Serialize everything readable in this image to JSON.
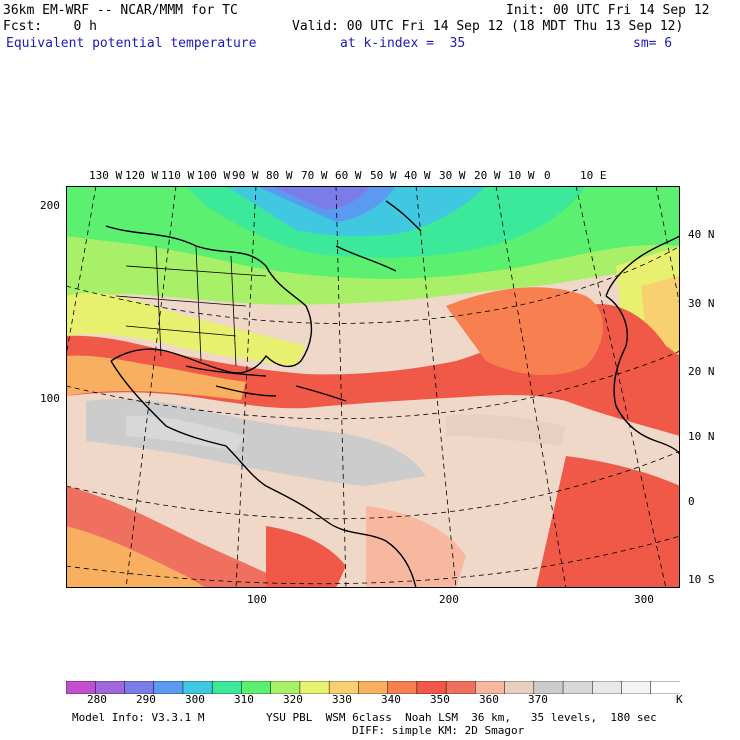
{
  "header": {
    "title_left": "36km EM-WRF -- NCAR/MMM for TC",
    "init": "Init: 00 UTC Fri 14 Sep 12",
    "fcst": "Fcst:    0 h",
    "valid": "Valid: 00 UTC Fri 14 Sep 12 (18 MDT Thu 13 Sep 12)",
    "field": "Equivalent potential temperature",
    "level": "at k-index =  35",
    "sm": "sm= 6"
  },
  "axes": {
    "lon_labels": [
      "130 W",
      "120 W",
      "110 W",
      "100 W",
      "90 W",
      "80 W",
      "70 W",
      "60 W",
      "50 W",
      "40 W",
      "30 W",
      "20 W",
      "10 W",
      "0",
      "10 E"
    ],
    "lat_labels": [
      "40 N",
      "30 N",
      "20 N",
      "10 N",
      "0",
      "10 S"
    ],
    "grid_left": [
      "200",
      "100"
    ],
    "grid_bottom": [
      "100",
      "200",
      "300"
    ]
  },
  "colorbar": {
    "colors": [
      "#c050d0",
      "#a068d8",
      "#7c7ce8",
      "#5a9af0",
      "#40c8e0",
      "#3ce89a",
      "#5cf070",
      "#a8f068",
      "#e8f070",
      "#f8d070",
      "#f8b060",
      "#f88050",
      "#f05848",
      "#f07060",
      "#f8b8a0",
      "#e8d0c0",
      "#cccccc",
      "#d8d8d8",
      "#e8e8e8",
      "#f4f4f4",
      "#ffffff"
    ],
    "labels": [
      "280",
      "290",
      "300",
      "310",
      "320",
      "330",
      "340",
      "350",
      "360",
      "370"
    ],
    "unit": "K"
  },
  "footer": {
    "model": "Model Info: V3.3.1 M",
    "physics": "YSU PBL  WSM 6class  Noah LSM  36 km,   35 levels,  180 sec",
    "physics2": "DIFF: simple KM: 2D Smagor"
  }
}
